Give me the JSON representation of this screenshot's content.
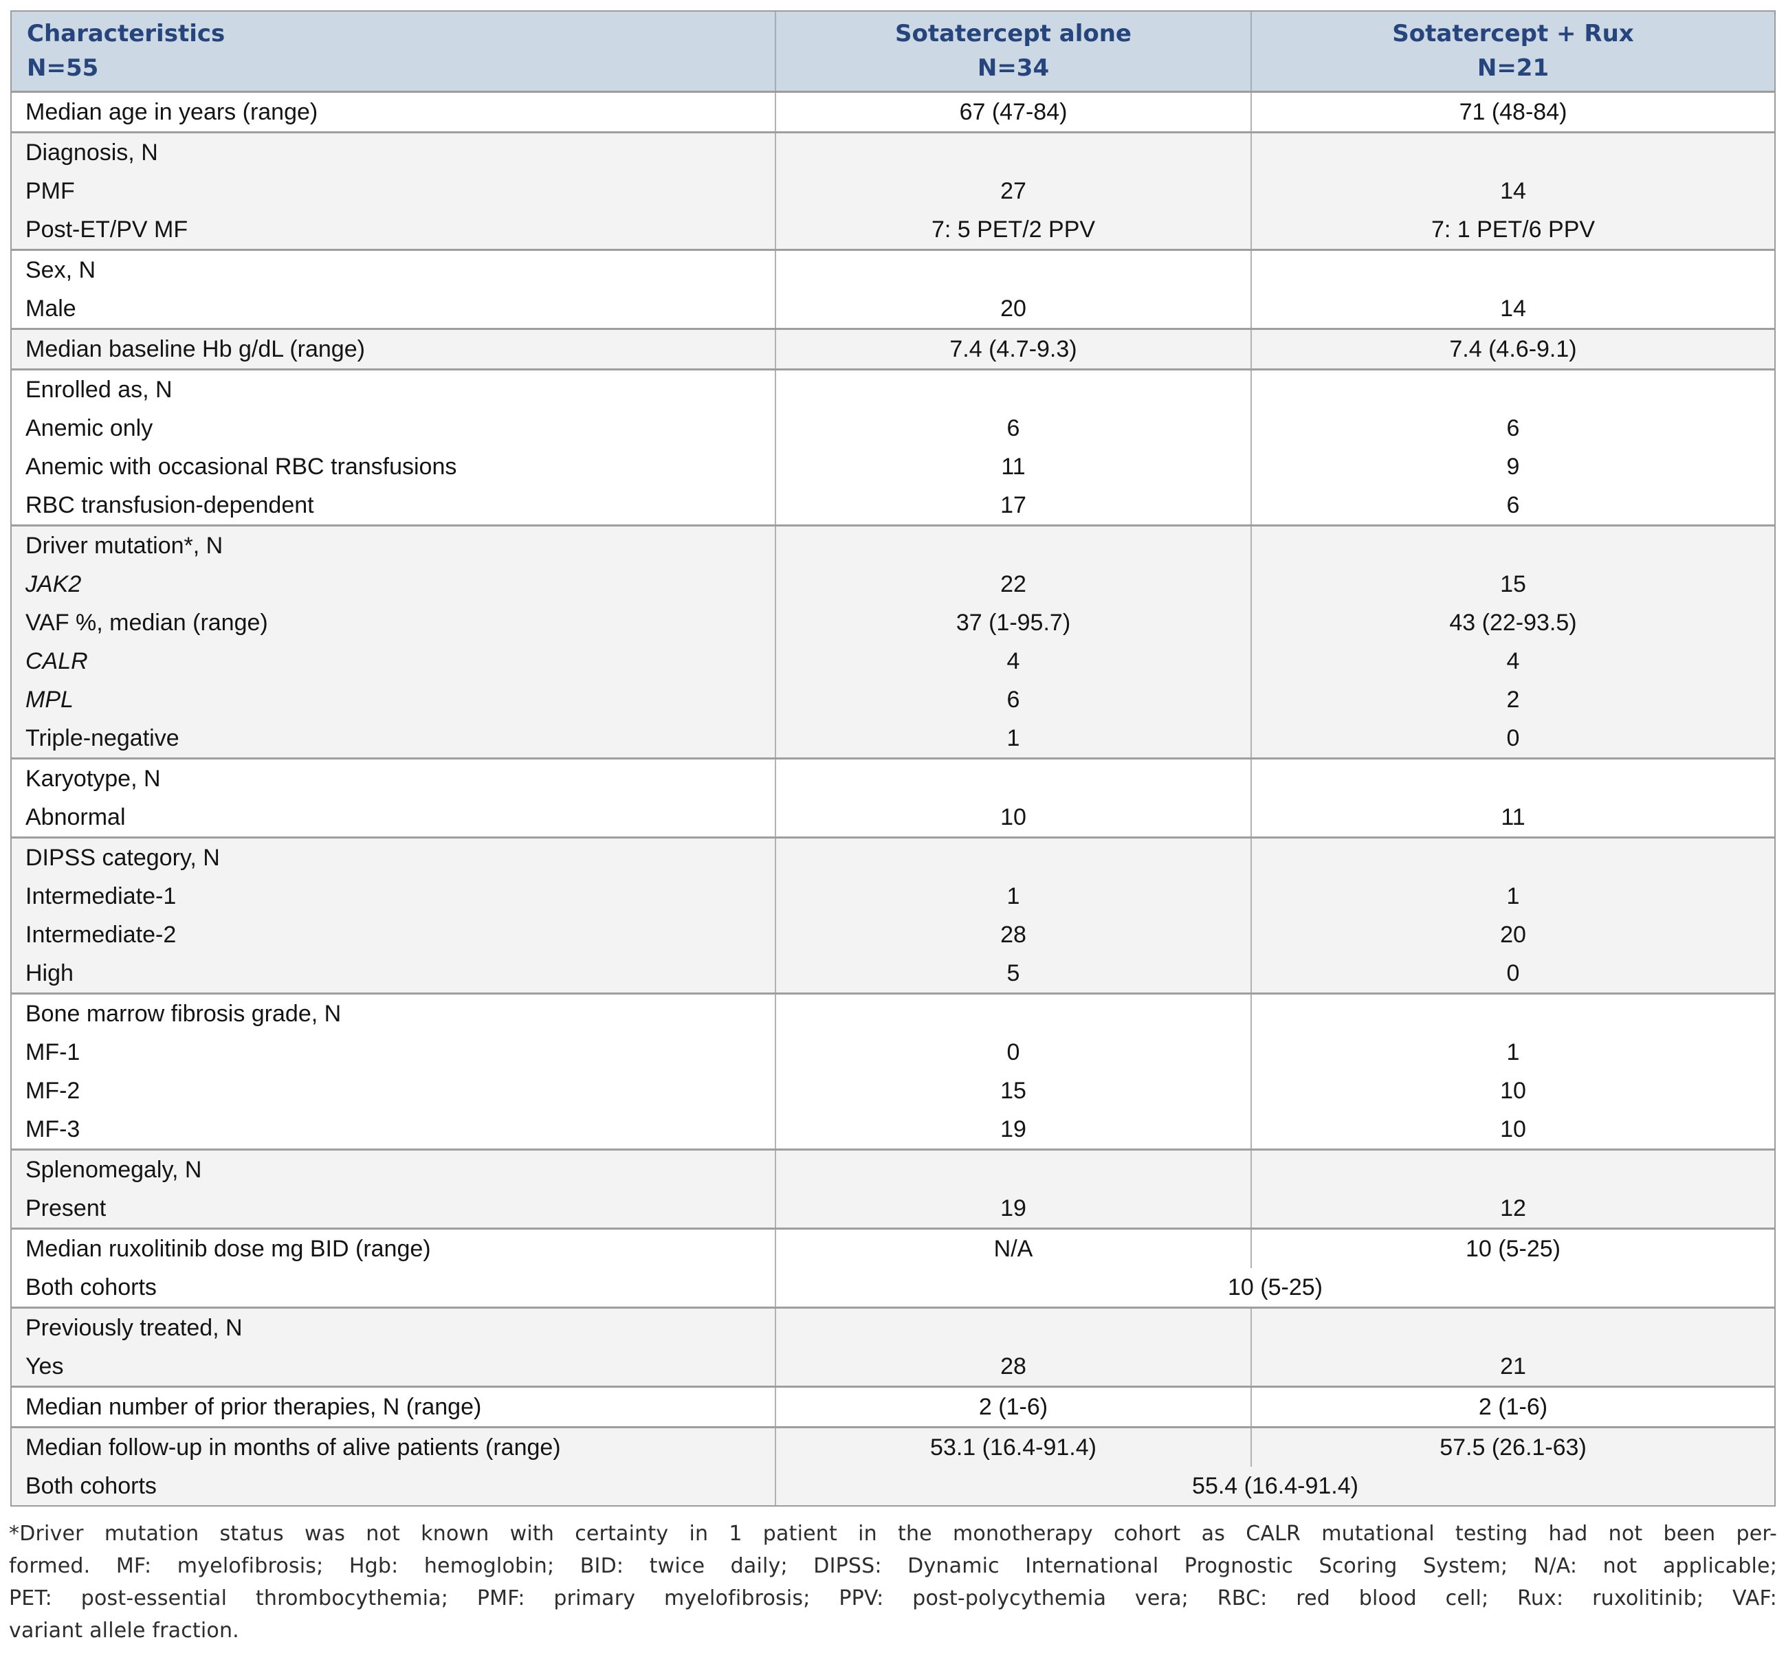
{
  "header": {
    "col1_line1": "Characteristics",
    "col1_line2": "N=55",
    "col2_line1": "Sotatercept alone",
    "col2_line2": "N=34",
    "col3_line1": "Sotatercept + Rux",
    "col3_line2": "N=21"
  },
  "groups": [
    {
      "lines": [
        {
          "label": "Median age in years (range)",
          "v1": "67 (47-84)",
          "v2": "71 (48-84)"
        }
      ]
    },
    {
      "lines": [
        {
          "label": "Diagnosis, N"
        },
        {
          "label": "PMF",
          "v1": "27",
          "v2": "14"
        },
        {
          "label": "Post-ET/PV MF",
          "v1": "7: 5 PET/2 PPV",
          "v2": "7: 1 PET/6 PPV"
        }
      ]
    },
    {
      "lines": [
        {
          "label": "Sex, N"
        },
        {
          "label": "Male",
          "v1": "20",
          "v2": "14"
        }
      ]
    },
    {
      "lines": [
        {
          "label": "Median baseline Hb g/dL (range)",
          "v1": "7.4 (4.7-9.3)",
          "v2": "7.4 (4.6-9.1)"
        }
      ]
    },
    {
      "lines": [
        {
          "label": "Enrolled as, N"
        },
        {
          "label": "Anemic only",
          "v1": "6",
          "v2": "6"
        },
        {
          "label": "Anemic with occasional RBC transfusions",
          "v1": "11",
          "v2": "9"
        },
        {
          "label": "RBC transfusion-dependent",
          "v1": "17",
          "v2": "6"
        }
      ]
    },
    {
      "lines": [
        {
          "label": "Driver mutation*, N"
        },
        {
          "label": "JAK2",
          "v1": "22",
          "v2": "15"
        },
        {
          "label": "VAF %, median (range)",
          "v1": "37 (1-95.7)",
          "v2": "43 (22-93.5)"
        },
        {
          "label": "CALR",
          "v1": "4",
          "v2": "4"
        },
        {
          "label": "MPL",
          "v1": "6",
          "v2": "2"
        },
        {
          "label": "Triple-negative",
          "v1": "1",
          "v2": "0"
        }
      ]
    },
    {
      "lines": [
        {
          "label": "Karyotype, N"
        },
        {
          "label": "Abnormal",
          "v1": "10",
          "v2": "11"
        }
      ]
    },
    {
      "lines": [
        {
          "label": "DIPSS category, N"
        },
        {
          "label": "Intermediate-1",
          "v1": "1",
          "v2": "1"
        },
        {
          "label": "Intermediate-2",
          "v1": "28",
          "v2": "20"
        },
        {
          "label": "High",
          "v1": "5",
          "v2": "0"
        }
      ]
    },
    {
      "lines": [
        {
          "label": "Bone marrow fibrosis grade, N"
        },
        {
          "label": "MF-1",
          "v1": "0",
          "v2": "1"
        },
        {
          "label": "MF-2",
          "v1": "15",
          "v2": "10"
        },
        {
          "label": "MF-3",
          "v1": "19",
          "v2": "10"
        }
      ]
    },
    {
      "lines": [
        {
          "label": "Splenomegaly, N"
        },
        {
          "label": "Present",
          "v1": "19",
          "v2": "12"
        }
      ]
    },
    {
      "lines": [
        {
          "label": "Median ruxolitinib dose mg BID (range)",
          "v1": "N/A",
          "v2": "10 (5-25)"
        },
        {
          "label": "Both cohorts",
          "span": "10 (5-25)"
        }
      ]
    },
    {
      "lines": [
        {
          "label": "Previously treated, N"
        },
        {
          "label": "Yes",
          "v1": "28",
          "v2": "21"
        }
      ]
    },
    {
      "lines": [
        {
          "label": "Median number of prior therapies, N (range)",
          "v1": "2 (1-6)",
          "v2": "2 (1-6)"
        }
      ]
    },
    {
      "lines": [
        {
          "label": "Median follow-up in months of alive patients (range)",
          "v1": "53.1 (16.4-91.4)",
          "v2": "57.5 (26.1-63)"
        },
        {
          "label": "Both cohorts",
          "span": "55.4 (16.4-91.4)"
        }
      ]
    }
  ],
  "footnote": {
    "lines": [
      "*Driver mutation status was not known with certainty in 1 patient in the monotherapy cohort as CALR mutational testing had not been per-",
      "formed. MF: myelofibrosis; Hgb: hemoglobin; BID: twice daily; DIPSS: Dynamic International Prognostic Scoring System; N/A: not applicable;",
      "PET: post-essential thrombocythemia; PMF: primary myelofibrosis; PPV: post-polycythemia vera; RBC: red blood cell; Rux: ruxolitinib; VAF:",
      "variant allele fraction."
    ]
  },
  "colors": {
    "header_bg": "#ccd8e3",
    "header_text": "#26457c",
    "row_alt_bg": "#f3f3f3",
    "border": "#9e9e9e"
  }
}
